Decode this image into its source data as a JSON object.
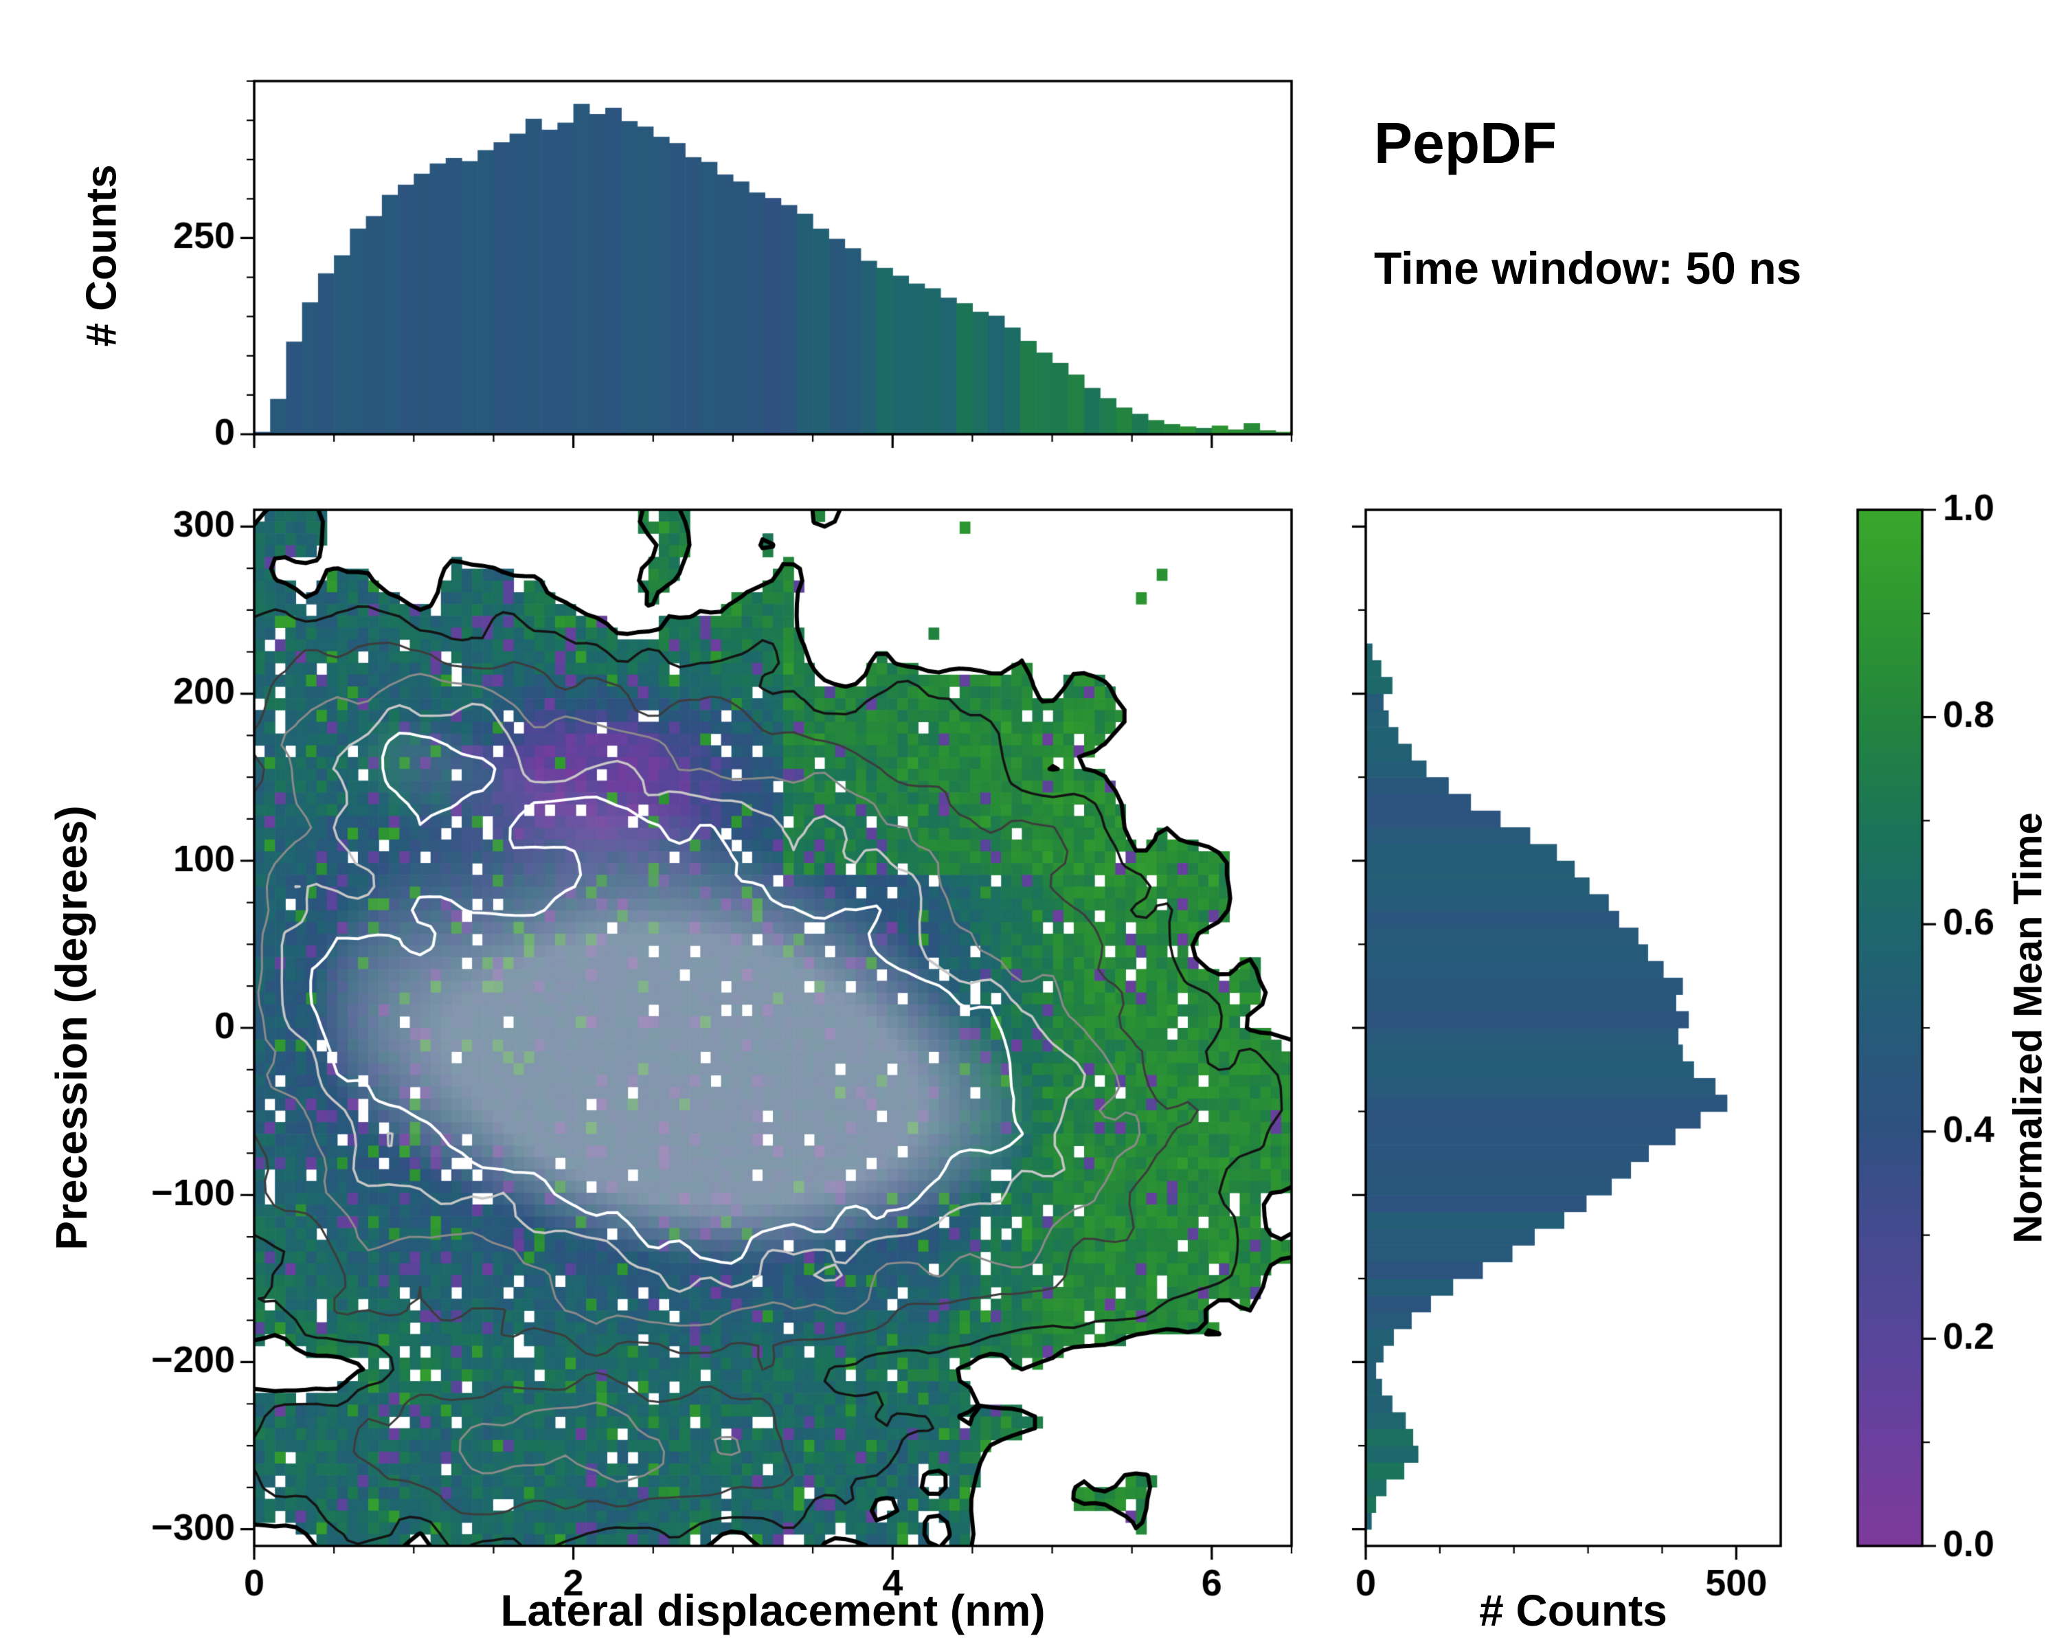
{
  "title": "PepDF",
  "subtitle": "Time window: 50 ns",
  "labels": {
    "counts": "# Counts",
    "xlabel": "Lateral displacement (nm)",
    "ylabel": "Precession (degrees)",
    "colorbar": "Normalized Mean Time"
  },
  "colors": {
    "background": "#ffffff",
    "axis": "#000000",
    "colormap_stops": [
      [
        0.0,
        "#7e3a9c"
      ],
      [
        0.1,
        "#6b3f9d"
      ],
      [
        0.2,
        "#57459a"
      ],
      [
        0.3,
        "#454a90"
      ],
      [
        0.4,
        "#2f5181"
      ],
      [
        0.5,
        "#265a79"
      ],
      [
        0.6,
        "#1d676d"
      ],
      [
        0.7,
        "#1b7556"
      ],
      [
        0.8,
        "#23853d"
      ],
      [
        0.9,
        "#2e9630"
      ],
      [
        1.0,
        "#3aa62c"
      ]
    ]
  },
  "chart_data": [
    {
      "type": "bar",
      "panel": "top",
      "ylabel": "# Counts",
      "x_range": [
        0,
        6.5
      ],
      "y_range": [
        0,
        450
      ],
      "x_ticks": [
        0,
        2,
        4,
        6
      ],
      "x_minor_step": 0.5,
      "y_ticks": [
        0,
        250
      ],
      "y_minor_step": 50,
      "bin_start": 0,
      "bin_width": 0.1,
      "values": [
        3,
        45,
        118,
        168,
        205,
        228,
        262,
        278,
        305,
        318,
        332,
        345,
        352,
        348,
        362,
        372,
        383,
        402,
        388,
        397,
        421,
        408,
        416,
        399,
        392,
        379,
        371,
        353,
        347,
        331,
        322,
        308,
        301,
        292,
        281,
        262,
        249,
        237,
        221,
        212,
        202,
        192,
        186,
        174,
        167,
        156,
        151,
        136,
        119,
        104,
        91,
        76,
        59,
        46,
        34,
        26,
        18,
        13,
        10,
        8,
        11,
        6,
        14,
        5,
        3
      ],
      "color_profile": {
        "flat_until": 3.2,
        "flat_value": 0.46,
        "end_value": 0.9,
        "noise": 0.16
      }
    },
    {
      "type": "heatmap",
      "panel": "main",
      "xlabel": "Lateral displacement (nm)",
      "ylabel": "Precession (degrees)",
      "colorbar_label": "Normalized Mean Time",
      "x_range": [
        0,
        6.5
      ],
      "y_range": [
        -310,
        310
      ],
      "x_ticks": [
        0,
        2,
        4,
        6
      ],
      "x_minor_step": 0.5,
      "y_ticks": [
        -300,
        -200,
        -100,
        0,
        100,
        200,
        300
      ],
      "y_minor_step": 25,
      "grid_nx": 100,
      "grid_ny": 88,
      "mask_threshold": 0.105,
      "hole_fraction": 0.045,
      "noise": {
        "amp": 0.16,
        "scale_x": 0.38,
        "scale_y": 36
      },
      "density_blobs": [
        {
          "cx": 2.1,
          "cy": -10,
          "sx": 1.5,
          "sy": 115,
          "a": 1.0
        },
        {
          "cx": 3.6,
          "cy": -60,
          "sx": 1.2,
          "sy": 95,
          "a": 0.55
        },
        {
          "cx": 0.9,
          "cy": 185,
          "sx": 0.75,
          "sy": 38,
          "a": 0.38
        },
        {
          "cx": 0.5,
          "cy": 60,
          "sx": 0.6,
          "sy": 120,
          "a": 0.3
        },
        {
          "cx": 1.5,
          "cy": -255,
          "sx": 1.05,
          "sy": 40,
          "a": 0.42
        },
        {
          "cx": 3.0,
          "cy": -245,
          "sx": 0.8,
          "sy": 32,
          "a": 0.26
        },
        {
          "cx": 5.1,
          "cy": -60,
          "sx": 0.85,
          "sy": 85,
          "a": 0.32
        },
        {
          "cx": 2.3,
          "cy": 150,
          "sx": 1.0,
          "sy": 45,
          "a": 0.3
        },
        {
          "cx": 4.3,
          "cy": 110,
          "sx": 0.8,
          "sy": 50,
          "a": 0.22
        },
        {
          "cx": 2.0,
          "cy": -205,
          "sx": 3.5,
          "sy": 16,
          "a": -0.22
        }
      ],
      "contour_levels": [
        {
          "level": 0.105,
          "color": "#000000",
          "width": 6
        },
        {
          "level": 0.22,
          "color": "#141414",
          "width": 3.5
        },
        {
          "level": 0.4,
          "color": "#3c3c3c",
          "width": 3
        },
        {
          "level": 0.58,
          "color": "#8a8a8a",
          "width": 3
        },
        {
          "level": 0.74,
          "color": "#c6c6c6",
          "width": 3.5
        },
        {
          "level": 0.88,
          "color": "#ffffff",
          "width": 4
        }
      ],
      "value_model": {
        "base": 0.44,
        "density_coef": 0.3,
        "teal_top_left": {
          "x_max": 1.7,
          "y_min": 130,
          "v": 0.6
        },
        "teal_bottom": {
          "y_max": -212,
          "v": 0.62
        },
        "purple_patch": {
          "cx": 2.15,
          "cy": 148,
          "sx": 0.5,
          "sy": 26,
          "v": 0.13
        },
        "green_top_right": {
          "x_min": 3.3,
          "y_min": 95,
          "v": 0.83,
          "mix": 0.75
        },
        "green_right": {
          "x_start": 4.15,
          "span": 1.0,
          "v": 0.86,
          "mix": 0.85
        },
        "edge_green": {
          "d_max": 0.22,
          "v": 0.78,
          "mix": 0.5
        },
        "speckle": 0.16,
        "purple_outlier_frac": 0.05,
        "green_outlier_frac": 0.04,
        "core_gray": {
          "d_start": 0.78,
          "color": "#c9cdd2",
          "max_mix": 0.55
        }
      }
    },
    {
      "type": "barh",
      "panel": "right",
      "xlabel": "# Counts",
      "x_range": [
        0,
        560
      ],
      "x_ticks": [
        0,
        500
      ],
      "x_minor_step": 100,
      "y_range": [
        -310,
        310
      ],
      "y_ticks": [
        -300,
        -200,
        -100,
        0,
        100,
        200,
        300
      ],
      "y_minor_step": 50,
      "bin_start": -300,
      "bin_width": 10,
      "values": [
        8,
        14,
        28,
        52,
        71,
        64,
        54,
        36,
        22,
        14,
        24,
        38,
        62,
        88,
        118,
        158,
        198,
        228,
        268,
        298,
        332,
        358,
        382,
        418,
        452,
        488,
        472,
        443,
        428,
        422,
        436,
        419,
        428,
        402,
        381,
        368,
        342,
        328,
        302,
        282,
        258,
        222,
        182,
        142,
        112,
        82,
        62,
        44,
        31,
        24,
        36,
        21,
        9
      ],
      "color_profile": {
        "mid_value": 0.47,
        "edge_value": 0.63,
        "edge_start": 140,
        "edge_span": 120,
        "noise": 0.06
      }
    },
    {
      "type": "colorbar",
      "panel": "cbar",
      "label": "Normalized Mean Time",
      "range": [
        0,
        1
      ],
      "ticks": [
        0.0,
        0.2,
        0.4,
        0.6,
        0.8,
        1.0
      ],
      "minor_step": 0.1
    }
  ]
}
